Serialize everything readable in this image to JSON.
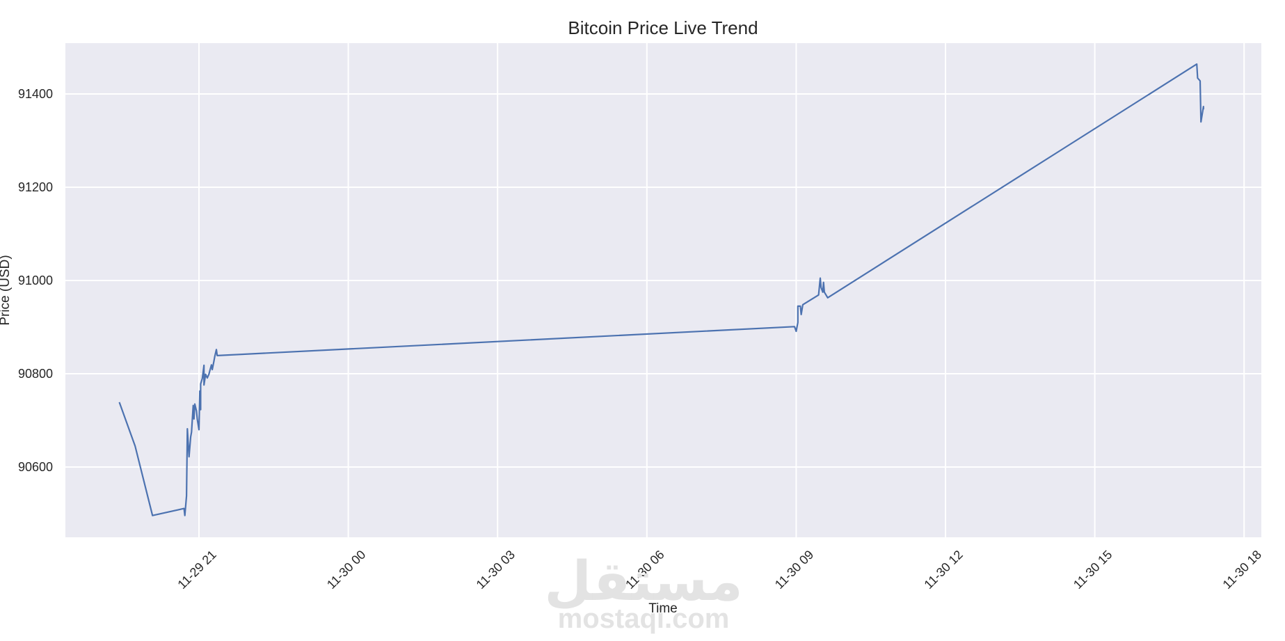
{
  "chart_data": {
    "type": "line",
    "title": "Bitcoin Price Live Trend",
    "xlabel": "Time",
    "ylabel": "Price (USD)",
    "style": "seaborn darkgrid",
    "background_color": "#eaeaf2",
    "grid_color": "#ffffff",
    "line_color": "#4c72b0",
    "grid": true,
    "legend": null,
    "x_tick_labels": [
      "11-29 21",
      "11-30 00",
      "11-30 03",
      "11-30 06",
      "11-30 09",
      "11-30 12",
      "11-30 15",
      "11-30 18"
    ],
    "y_tick_labels": [
      "90600",
      "90800",
      "91000",
      "91200",
      "91400"
    ],
    "ylim": [
      90450,
      91560
    ],
    "xlim": [
      "11-29 17:48",
      "11-30 18:18"
    ],
    "series": [
      {
        "name": "Price (USD)",
        "points": [
          {
            "x": "11-29 19:24",
            "y": 90739
          },
          {
            "x": "11-29 19:43",
            "y": 90645
          },
          {
            "x": "11-29 20:04",
            "y": 90496
          },
          {
            "x": "11-29 20:42",
            "y": 90511
          },
          {
            "x": "11-29 20:43",
            "y": 90496
          },
          {
            "x": "11-29 20:45",
            "y": 90538
          },
          {
            "x": "11-29 20:46",
            "y": 90682
          },
          {
            "x": "11-29 20:48",
            "y": 90622
          },
          {
            "x": "11-29 20:50",
            "y": 90665
          },
          {
            "x": "11-29 20:51",
            "y": 90675
          },
          {
            "x": "11-29 20:53",
            "y": 90732
          },
          {
            "x": "11-29 20:54",
            "y": 90703
          },
          {
            "x": "11-29 20:55",
            "y": 90735
          },
          {
            "x": "11-29 20:57",
            "y": 90720
          },
          {
            "x": "11-29 20:58",
            "y": 90702
          },
          {
            "x": "11-29 21:00",
            "y": 90680
          },
          {
            "x": "11-29 21:01",
            "y": 90763
          },
          {
            "x": "11-29 21:02",
            "y": 90723
          },
          {
            "x": "11-29 21:02",
            "y": 90778
          },
          {
            "x": "11-29 21:04",
            "y": 90790
          },
          {
            "x": "11-29 21:06",
            "y": 90818
          },
          {
            "x": "11-29 21:06",
            "y": 90776
          },
          {
            "x": "11-29 21:08",
            "y": 90799
          },
          {
            "x": "11-29 21:10",
            "y": 90791
          },
          {
            "x": "11-29 21:12",
            "y": 90799
          },
          {
            "x": "11-29 21:13",
            "y": 90806
          },
          {
            "x": "11-29 21:15",
            "y": 90819
          },
          {
            "x": "11-29 21:16",
            "y": 90809
          },
          {
            "x": "11-29 21:18",
            "y": 90827
          },
          {
            "x": "11-29 21:19",
            "y": 90837
          },
          {
            "x": "11-29 21:21",
            "y": 90852
          },
          {
            "x": "11-29 21:22",
            "y": 90839
          },
          {
            "x": "11-30 08:58",
            "y": 90901
          },
          {
            "x": "11-30 09:00",
            "y": 90891
          },
          {
            "x": "11-30 09:02",
            "y": 90910
          },
          {
            "x": "11-30 09:02",
            "y": 90945
          },
          {
            "x": "11-30 09:05",
            "y": 90945
          },
          {
            "x": "11-30 09:06",
            "y": 90927
          },
          {
            "x": "11-30 09:08",
            "y": 90948
          },
          {
            "x": "11-30 09:27",
            "y": 90969
          },
          {
            "x": "11-30 09:29",
            "y": 91005
          },
          {
            "x": "11-30 09:30",
            "y": 90985
          },
          {
            "x": "11-30 09:32",
            "y": 90975
          },
          {
            "x": "11-30 09:33",
            "y": 90996
          },
          {
            "x": "11-30 09:34",
            "y": 90975
          },
          {
            "x": "11-30 09:38",
            "y": 90963
          },
          {
            "x": "11-30 17:03",
            "y": 91464
          },
          {
            "x": "11-30 17:04",
            "y": 91434
          },
          {
            "x": "11-30 17:07",
            "y": 91428
          },
          {
            "x": "11-30 17:08",
            "y": 91340
          },
          {
            "x": "11-30 17:11",
            "y": 91373
          },
          {
            "x": "11-30 17:11",
            "y": 91367
          }
        ]
      }
    ]
  },
  "watermark": {
    "arabic": "مستقل",
    "latin": "mostaqi.com"
  }
}
